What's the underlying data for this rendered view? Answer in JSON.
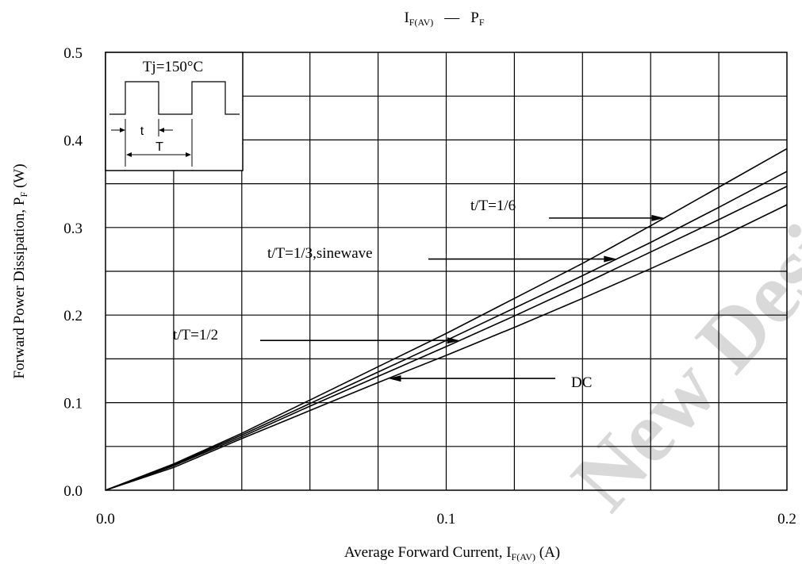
{
  "chart_data": {
    "type": "line",
    "title": {
      "main": "I",
      "main_sub": "F(AV)",
      "dash": "—",
      "right": "P",
      "right_sub": "F"
    },
    "xlabel": {
      "main": "Average Forward Current, I",
      "sub": "F(AV)",
      "unit": " (A)"
    },
    "ylabel": {
      "main": "Forward Power Dissipation, P",
      "sub": "F",
      "unit": " (W)"
    },
    "xlim": [
      0,
      0.2
    ],
    "ylim": [
      0,
      0.5
    ],
    "x_tick_labels": [
      "0.0",
      "0.1",
      "0.2"
    ],
    "y_tick_labels": [
      "0.0",
      "0.1",
      "0.2",
      "0.3",
      "0.4",
      "0.5"
    ],
    "grid": true,
    "series": [
      {
        "name": "t/T=1/6",
        "x": [
          0,
          0.02,
          0.04,
          0.06,
          0.08,
          0.1,
          0.12,
          0.14,
          0.16,
          0.18,
          0.2
        ],
        "y": [
          0,
          0.03,
          0.065,
          0.103,
          0.141,
          0.179,
          0.219,
          0.259,
          0.302,
          0.346,
          0.39
        ]
      },
      {
        "name": "t/T=1/3,sinewave",
        "x": [
          0,
          0.02,
          0.04,
          0.06,
          0.08,
          0.1,
          0.12,
          0.14,
          0.16,
          0.18,
          0.2
        ],
        "y": [
          0,
          0.029,
          0.063,
          0.099,
          0.135,
          0.171,
          0.208,
          0.245,
          0.283,
          0.323,
          0.364
        ]
      },
      {
        "name": "t/T=1/2",
        "x": [
          0,
          0.02,
          0.04,
          0.06,
          0.08,
          0.1,
          0.12,
          0.14,
          0.16,
          0.18,
          0.2
        ],
        "y": [
          0,
          0.028,
          0.061,
          0.096,
          0.13,
          0.164,
          0.199,
          0.235,
          0.272,
          0.309,
          0.347
        ]
      },
      {
        "name": "DC",
        "x": [
          0,
          0.02,
          0.04,
          0.06,
          0.08,
          0.1,
          0.12,
          0.14,
          0.16,
          0.18,
          0.2
        ],
        "y": [
          0,
          0.026,
          0.059,
          0.091,
          0.123,
          0.154,
          0.186,
          0.219,
          0.253,
          0.288,
          0.326
        ]
      }
    ],
    "annotations": [
      {
        "text": "t/T=1/6",
        "series": "t/T=1/6",
        "arrow_x": 0.164
      },
      {
        "text": "t/T=1/3,sinewave",
        "series": "t/T=1/3,sinewave",
        "arrow_x": 0.15
      },
      {
        "text": "t/T=1/2",
        "series": "t/T=1/2",
        "arrow_x": 0.104
      },
      {
        "text": "DC",
        "series": "DC",
        "arrow_x": 0.083
      }
    ],
    "inset": {
      "temperature": "Tj=150°C",
      "pulse_width": "t",
      "period": "T"
    }
  },
  "watermark": "New Design"
}
